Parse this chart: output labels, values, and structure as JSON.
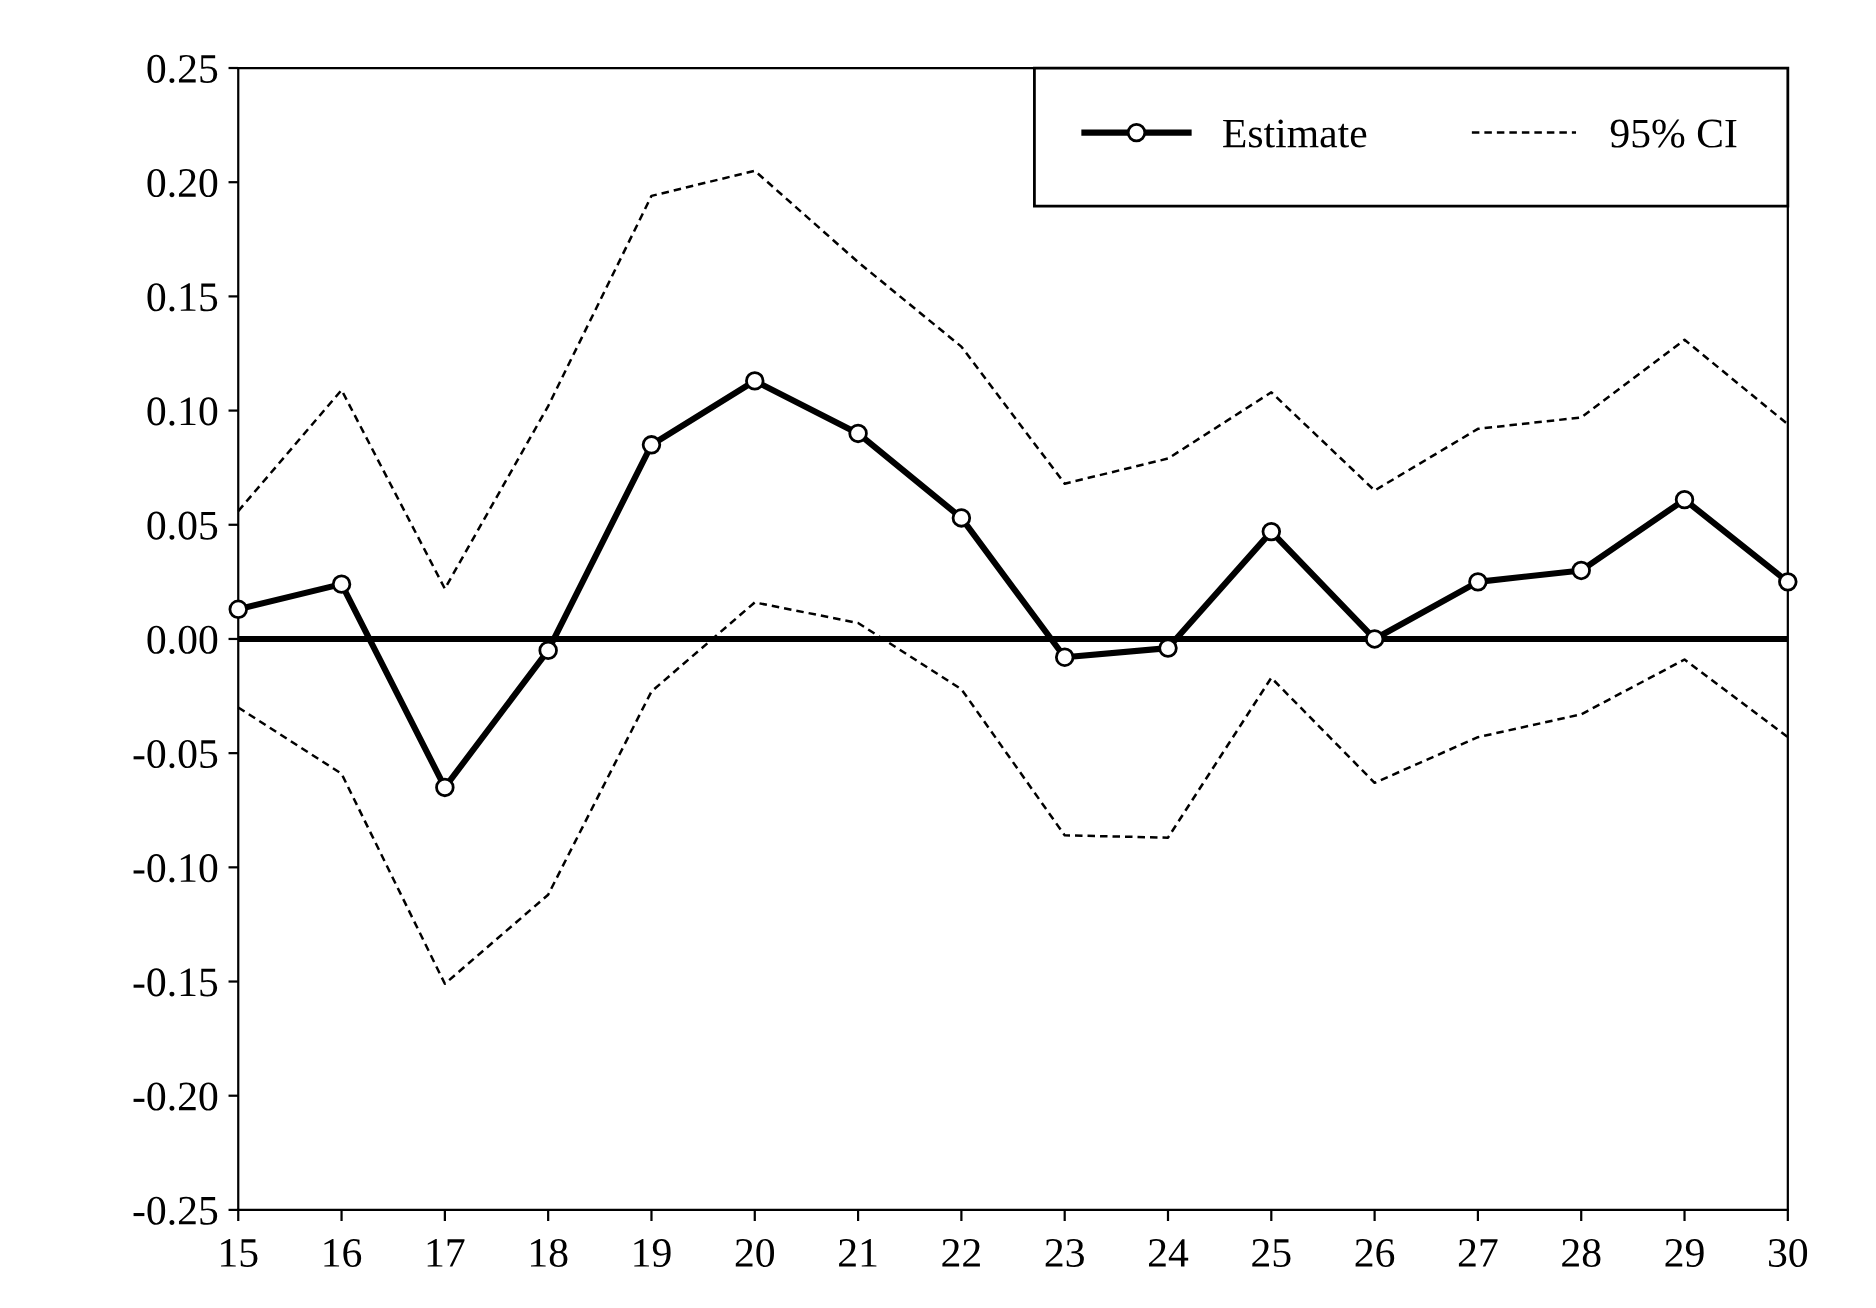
{
  "chart_data": {
    "type": "line",
    "x": [
      15,
      16,
      17,
      18,
      19,
      20,
      21,
      22,
      23,
      24,
      25,
      26,
      27,
      28,
      29,
      30
    ],
    "xlim": [
      15,
      30
    ],
    "xticks": [
      15,
      16,
      17,
      18,
      19,
      20,
      21,
      22,
      23,
      24,
      25,
      26,
      27,
      28,
      29,
      30
    ],
    "ylim": [
      -0.25,
      0.25
    ],
    "yticks": [
      {
        "value": -0.25,
        "label": "-0.25"
      },
      {
        "value": -0.2,
        "label": "-0.20"
      },
      {
        "value": -0.15,
        "label": "-0.15"
      },
      {
        "value": -0.1,
        "label": "-0.10"
      },
      {
        "value": -0.05,
        "label": "-0.05"
      },
      {
        "value": 0,
        "label": "0.00"
      },
      {
        "value": 0.05,
        "label": "0.05"
      },
      {
        "value": 0.1,
        "label": "0.10"
      },
      {
        "value": 0.15,
        "label": "0.15"
      },
      {
        "value": 0.2,
        "label": "0.20"
      },
      {
        "value": 0.25,
        "label": "0.25"
      }
    ],
    "series": [
      {
        "name": "Estimate",
        "color": "#000000",
        "marker": "circle",
        "line_style": "solid",
        "values": [
          0.013,
          0.024,
          -0.065,
          -0.005,
          0.085,
          0.113,
          0.09,
          0.053,
          -0.008,
          -0.004,
          0.047,
          0.0,
          0.025,
          0.03,
          0.061,
          0.025
        ]
      },
      {
        "name": "95% CI",
        "color": "#000000",
        "marker": "none",
        "line_style": "dashed",
        "values": [
          0.056,
          0.109,
          0.022,
          0.102,
          0.194,
          0.205,
          0.165,
          0.128,
          0.068,
          0.079,
          0.108,
          0.065,
          0.092,
          0.097,
          0.131,
          0.094
        ]
      },
      {
        "color": "#000000",
        "marker": "none",
        "line_style": "dashed",
        "values": [
          -0.03,
          -0.059,
          -0.151,
          -0.112,
          -0.023,
          0.016,
          0.007,
          -0.022,
          -0.086,
          -0.087,
          -0.017,
          -0.063,
          -0.043,
          -0.033,
          -0.009,
          -0.043
        ]
      }
    ],
    "ref_lines": [
      {
        "axis": "y",
        "value": 0,
        "color": "#000000",
        "line_style": "solid"
      }
    ],
    "grid": false,
    "legend": "top right"
  }
}
